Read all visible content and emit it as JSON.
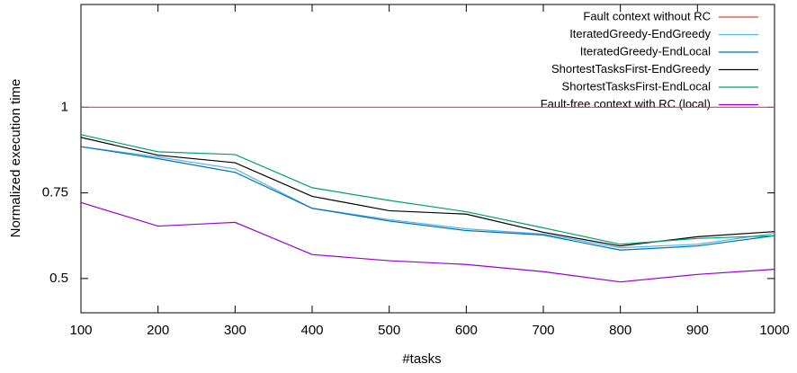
{
  "chart_data": {
    "type": "line",
    "x_label": "#tasks",
    "y_label": "Normalized execution time",
    "x": [
      100,
      200,
      300,
      400,
      500,
      600,
      700,
      800,
      900,
      1000
    ],
    "xlim": [
      100,
      1000
    ],
    "xticks": [
      100,
      200,
      300,
      400,
      500,
      600,
      700,
      800,
      900,
      1000
    ],
    "ylim": [
      0.4,
      1.3
    ],
    "yticks": [
      0.5,
      0.75,
      1
    ],
    "legend": "top-right",
    "series": [
      {
        "name": "Fault context without RC",
        "color": "#e8452c",
        "values": [
          1,
          1,
          1,
          1,
          1,
          1,
          1,
          1,
          1,
          1
        ]
      },
      {
        "name": "IteratedGreedy-EndGreedy",
        "color": "#56b4e9",
        "values": [
          0.885,
          0.855,
          0.82,
          0.705,
          0.672,
          0.645,
          0.63,
          0.59,
          0.6,
          0.632
        ]
      },
      {
        "name": "IteratedGreedy-EndLocal",
        "color": "#0072b2",
        "values": [
          0.885,
          0.85,
          0.81,
          0.705,
          0.668,
          0.64,
          0.627,
          0.583,
          0.595,
          0.625
        ]
      },
      {
        "name": "ShortestTasksFirst-EndGreedy",
        "color": "#000000",
        "values": [
          0.912,
          0.86,
          0.838,
          0.74,
          0.698,
          0.688,
          0.635,
          0.595,
          0.622,
          0.637
        ]
      },
      {
        "name": "ShortestTasksFirst-EndLocal",
        "color": "#009e73",
        "values": [
          0.92,
          0.87,
          0.862,
          0.765,
          0.728,
          0.695,
          0.648,
          0.6,
          0.617,
          0.625
        ]
      },
      {
        "name": "Fault-free context with RC (local)",
        "color": "#9400d3",
        "values": [
          0.722,
          0.653,
          0.664,
          0.57,
          0.552,
          0.541,
          0.52,
          0.49,
          0.512,
          0.527
        ]
      }
    ]
  }
}
